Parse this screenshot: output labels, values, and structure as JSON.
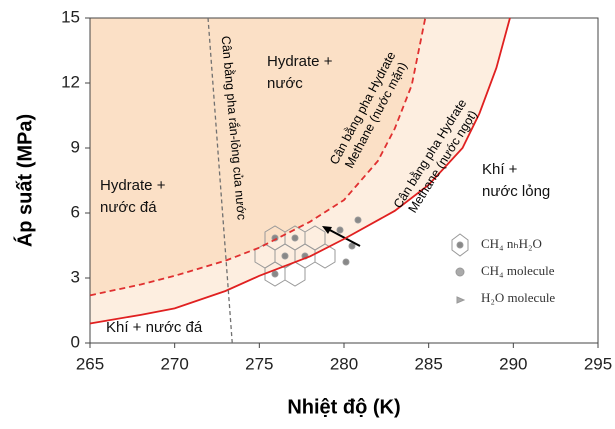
{
  "chart_data": {
    "type": "line",
    "x_label": "Nhiệt độ (K)",
    "y_label": "Áp suất (MPa)",
    "xlim": [
      265,
      295
    ],
    "ylim": [
      0,
      15
    ],
    "xticks": [
      265,
      270,
      275,
      280,
      285,
      290,
      295
    ],
    "yticks": [
      0,
      3,
      6,
      9,
      12,
      15
    ],
    "series": [
      {
        "name": [
          "Cân bằng pha Hydrate",
          "Methane (nước mặn)"
        ],
        "color": "#e03030",
        "dashed": true,
        "x": [
          265,
          268,
          270,
          273,
          275,
          278,
          280,
          282,
          283,
          284,
          284.8
        ],
        "values": [
          2.2,
          2.7,
          3.1,
          3.8,
          4.4,
          5.6,
          6.6,
          8.4,
          9.9,
          11.9,
          15
        ]
      },
      {
        "name": [
          "Cân bằng pha Hydrate",
          "Methane (nước ngọt)"
        ],
        "color": "#e02020",
        "dashed": false,
        "x": [
          265,
          268,
          270,
          273,
          275,
          278,
          280,
          283,
          285,
          287,
          288,
          289,
          289.8
        ],
        "values": [
          0.9,
          1.3,
          1.6,
          2.4,
          3.1,
          4.0,
          4.8,
          6.1,
          7.3,
          9.0,
          10.6,
          12.7,
          15
        ]
      },
      {
        "name": [
          "Cân bằng pha rắn-lỏng của nước"
        ],
        "color": "#707070",
        "dashed": true,
        "x": [
          273.4,
          271.97
        ],
        "values": [
          0,
          15
        ]
      }
    ],
    "regions": [
      [
        "Hydrate +",
        "nước"
      ],
      [
        "Hydrate +",
        "nước đá"
      ],
      [
        "Khí +",
        "nước lỏng"
      ],
      [
        "Khí + nước đá"
      ]
    ],
    "legend": [
      "CH₄ nₕH₂O",
      "CH₄ molecule",
      "H₂O molecule"
    ]
  }
}
